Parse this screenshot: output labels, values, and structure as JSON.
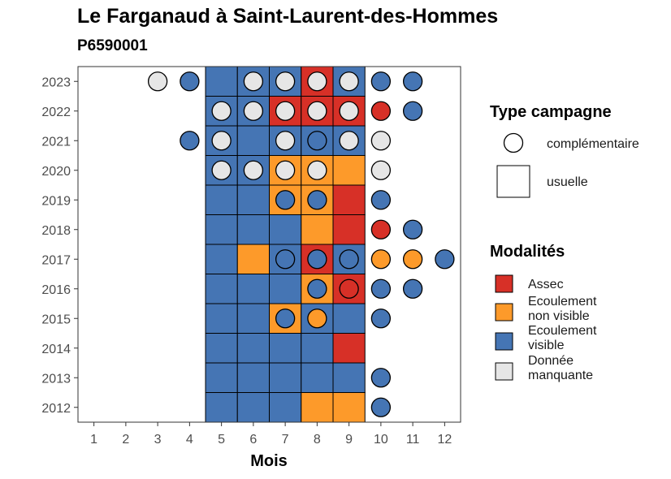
{
  "chart_data": {
    "type": "heatmap",
    "title": "Le Farganaud à Saint-Laurent-des-Hommes",
    "subtitle": "P6590001",
    "xlabel": "Mois",
    "ylabel": "",
    "x_ticks": [
      "1",
      "2",
      "3",
      "4",
      "5",
      "6",
      "7",
      "8",
      "9",
      "10",
      "11",
      "12"
    ],
    "y_ticks": [
      "2012",
      "2013",
      "2014",
      "2015",
      "2016",
      "2017",
      "2018",
      "2019",
      "2020",
      "2021",
      "2022",
      "2023"
    ],
    "xlim": [
      1,
      12
    ],
    "ylim": [
      2012,
      2023
    ],
    "grid": false,
    "legend_placement": "right",
    "colors": {
      "Assec": "#d73027",
      "Ecoulement non visible": "#fd9a2a",
      "Ecoulement visible": "#4575b4",
      "Donnée manquante": "#e6e6e6"
    },
    "usuelle": [
      {
        "year": 2023,
        "month": 5,
        "value": "Ecoulement visible"
      },
      {
        "year": 2023,
        "month": 6,
        "value": "Ecoulement visible"
      },
      {
        "year": 2023,
        "month": 7,
        "value": "Ecoulement visible"
      },
      {
        "year": 2023,
        "month": 8,
        "value": "Assec"
      },
      {
        "year": 2023,
        "month": 9,
        "value": "Ecoulement visible"
      },
      {
        "year": 2022,
        "month": 5,
        "value": "Ecoulement visible"
      },
      {
        "year": 2022,
        "month": 6,
        "value": "Ecoulement visible"
      },
      {
        "year": 2022,
        "month": 7,
        "value": "Assec"
      },
      {
        "year": 2022,
        "month": 8,
        "value": "Assec"
      },
      {
        "year": 2022,
        "month": 9,
        "value": "Assec"
      },
      {
        "year": 2021,
        "month": 5,
        "value": "Ecoulement visible"
      },
      {
        "year": 2021,
        "month": 6,
        "value": "Ecoulement visible"
      },
      {
        "year": 2021,
        "month": 7,
        "value": "Ecoulement visible"
      },
      {
        "year": 2021,
        "month": 8,
        "value": "Ecoulement visible"
      },
      {
        "year": 2021,
        "month": 9,
        "value": "Ecoulement visible"
      },
      {
        "year": 2020,
        "month": 5,
        "value": "Ecoulement visible"
      },
      {
        "year": 2020,
        "month": 6,
        "value": "Ecoulement visible"
      },
      {
        "year": 2020,
        "month": 7,
        "value": "Ecoulement non visible"
      },
      {
        "year": 2020,
        "month": 8,
        "value": "Ecoulement non visible"
      },
      {
        "year": 2020,
        "month": 9,
        "value": "Ecoulement non visible"
      },
      {
        "year": 2019,
        "month": 5,
        "value": "Ecoulement visible"
      },
      {
        "year": 2019,
        "month": 6,
        "value": "Ecoulement visible"
      },
      {
        "year": 2019,
        "month": 7,
        "value": "Ecoulement non visible"
      },
      {
        "year": 2019,
        "month": 8,
        "value": "Ecoulement non visible"
      },
      {
        "year": 2019,
        "month": 9,
        "value": "Assec"
      },
      {
        "year": 2018,
        "month": 5,
        "value": "Ecoulement visible"
      },
      {
        "year": 2018,
        "month": 6,
        "value": "Ecoulement visible"
      },
      {
        "year": 2018,
        "month": 7,
        "value": "Ecoulement visible"
      },
      {
        "year": 2018,
        "month": 8,
        "value": "Ecoulement non visible"
      },
      {
        "year": 2018,
        "month": 9,
        "value": "Assec"
      },
      {
        "year": 2017,
        "month": 5,
        "value": "Ecoulement visible"
      },
      {
        "year": 2017,
        "month": 6,
        "value": "Ecoulement non visible"
      },
      {
        "year": 2017,
        "month": 7,
        "value": "Ecoulement visible"
      },
      {
        "year": 2017,
        "month": 8,
        "value": "Assec"
      },
      {
        "year": 2017,
        "month": 9,
        "value": "Ecoulement visible"
      },
      {
        "year": 2016,
        "month": 5,
        "value": "Ecoulement visible"
      },
      {
        "year": 2016,
        "month": 6,
        "value": "Ecoulement visible"
      },
      {
        "year": 2016,
        "month": 7,
        "value": "Ecoulement visible"
      },
      {
        "year": 2016,
        "month": 8,
        "value": "Ecoulement non visible"
      },
      {
        "year": 2016,
        "month": 9,
        "value": "Assec"
      },
      {
        "year": 2015,
        "month": 5,
        "value": "Ecoulement visible"
      },
      {
        "year": 2015,
        "month": 6,
        "value": "Ecoulement visible"
      },
      {
        "year": 2015,
        "month": 7,
        "value": "Ecoulement non visible"
      },
      {
        "year": 2015,
        "month": 8,
        "value": "Ecoulement visible"
      },
      {
        "year": 2015,
        "month": 9,
        "value": "Ecoulement visible"
      },
      {
        "year": 2014,
        "month": 5,
        "value": "Ecoulement visible"
      },
      {
        "year": 2014,
        "month": 6,
        "value": "Ecoulement visible"
      },
      {
        "year": 2014,
        "month": 7,
        "value": "Ecoulement visible"
      },
      {
        "year": 2014,
        "month": 8,
        "value": "Ecoulement visible"
      },
      {
        "year": 2014,
        "month": 9,
        "value": "Assec"
      },
      {
        "year": 2013,
        "month": 5,
        "value": "Ecoulement visible"
      },
      {
        "year": 2013,
        "month": 6,
        "value": "Ecoulement visible"
      },
      {
        "year": 2013,
        "month": 7,
        "value": "Ecoulement visible"
      },
      {
        "year": 2013,
        "month": 8,
        "value": "Ecoulement visible"
      },
      {
        "year": 2013,
        "month": 9,
        "value": "Ecoulement visible"
      },
      {
        "year": 2012,
        "month": 5,
        "value": "Ecoulement visible"
      },
      {
        "year": 2012,
        "month": 6,
        "value": "Ecoulement visible"
      },
      {
        "year": 2012,
        "month": 7,
        "value": "Ecoulement visible"
      },
      {
        "year": 2012,
        "month": 8,
        "value": "Ecoulement non visible"
      },
      {
        "year": 2012,
        "month": 9,
        "value": "Ecoulement non visible"
      }
    ],
    "complementaire": [
      {
        "year": 2023,
        "month": 3,
        "value": "Donnée manquante"
      },
      {
        "year": 2023,
        "month": 4,
        "value": "Ecoulement visible"
      },
      {
        "year": 2023,
        "month": 6,
        "value": "Donnée manquante"
      },
      {
        "year": 2023,
        "month": 7,
        "value": "Donnée manquante"
      },
      {
        "year": 2023,
        "month": 8,
        "value": "Donnée manquante"
      },
      {
        "year": 2023,
        "month": 9,
        "value": "Donnée manquante"
      },
      {
        "year": 2023,
        "month": 10,
        "value": "Ecoulement visible"
      },
      {
        "year": 2023,
        "month": 11,
        "value": "Ecoulement visible"
      },
      {
        "year": 2022,
        "month": 5,
        "value": "Donnée manquante"
      },
      {
        "year": 2022,
        "month": 6,
        "value": "Donnée manquante"
      },
      {
        "year": 2022,
        "month": 7,
        "value": "Donnée manquante"
      },
      {
        "year": 2022,
        "month": 8,
        "value": "Donnée manquante"
      },
      {
        "year": 2022,
        "month": 9,
        "value": "Donnée manquante"
      },
      {
        "year": 2022,
        "month": 10,
        "value": "Assec"
      },
      {
        "year": 2022,
        "month": 11,
        "value": "Ecoulement visible"
      },
      {
        "year": 2021,
        "month": 4,
        "value": "Ecoulement visible"
      },
      {
        "year": 2021,
        "month": 5,
        "value": "Donnée manquante"
      },
      {
        "year": 2021,
        "month": 7,
        "value": "Donnée manquante"
      },
      {
        "year": 2021,
        "month": 8,
        "value": "Ecoulement visible"
      },
      {
        "year": 2021,
        "month": 9,
        "value": "Donnée manquante"
      },
      {
        "year": 2021,
        "month": 10,
        "value": "Donnée manquante"
      },
      {
        "year": 2020,
        "month": 5,
        "value": "Donnée manquante"
      },
      {
        "year": 2020,
        "month": 6,
        "value": "Donnée manquante"
      },
      {
        "year": 2020,
        "month": 7,
        "value": "Donnée manquante"
      },
      {
        "year": 2020,
        "month": 8,
        "value": "Donnée manquante"
      },
      {
        "year": 2020,
        "month": 10,
        "value": "Donnée manquante"
      },
      {
        "year": 2019,
        "month": 7,
        "value": "Ecoulement visible"
      },
      {
        "year": 2019,
        "month": 8,
        "value": "Ecoulement visible"
      },
      {
        "year": 2019,
        "month": 10,
        "value": "Ecoulement visible"
      },
      {
        "year": 2018,
        "month": 10,
        "value": "Assec"
      },
      {
        "year": 2018,
        "month": 11,
        "value": "Ecoulement visible"
      },
      {
        "year": 2017,
        "month": 7,
        "value": "Ecoulement visible"
      },
      {
        "year": 2017,
        "month": 8,
        "value": "Ecoulement visible"
      },
      {
        "year": 2017,
        "month": 9,
        "value": "Ecoulement visible"
      },
      {
        "year": 2017,
        "month": 10,
        "value": "Ecoulement non visible"
      },
      {
        "year": 2017,
        "month": 11,
        "value": "Ecoulement non visible"
      },
      {
        "year": 2017,
        "month": 12,
        "value": "Ecoulement visible"
      },
      {
        "year": 2016,
        "month": 8,
        "value": "Ecoulement visible"
      },
      {
        "year": 2016,
        "month": 9,
        "value": "Assec"
      },
      {
        "year": 2016,
        "month": 10,
        "value": "Ecoulement visible"
      },
      {
        "year": 2016,
        "month": 11,
        "value": "Ecoulement visible"
      },
      {
        "year": 2015,
        "month": 7,
        "value": "Ecoulement visible"
      },
      {
        "year": 2015,
        "month": 8,
        "value": "Ecoulement non visible"
      },
      {
        "year": 2015,
        "month": 10,
        "value": "Ecoulement visible"
      },
      {
        "year": 2013,
        "month": 10,
        "value": "Ecoulement visible"
      },
      {
        "year": 2012,
        "month": 10,
        "value": "Ecoulement visible"
      }
    ],
    "legend": {
      "type_title": "Type campagne",
      "type_items": [
        "complémentaire",
        "usuelle"
      ],
      "mod_title": "Modalités",
      "mod_items": [
        {
          "key": "Assec",
          "lines": [
            "Assec"
          ]
        },
        {
          "key": "Ecoulement non visible",
          "lines": [
            "Ecoulement",
            "non visible"
          ]
        },
        {
          "key": "Ecoulement visible",
          "lines": [
            "Ecoulement",
            "visible"
          ]
        },
        {
          "key": "Donnée manquante",
          "lines": [
            "Donnée",
            "manquante"
          ]
        }
      ]
    }
  }
}
